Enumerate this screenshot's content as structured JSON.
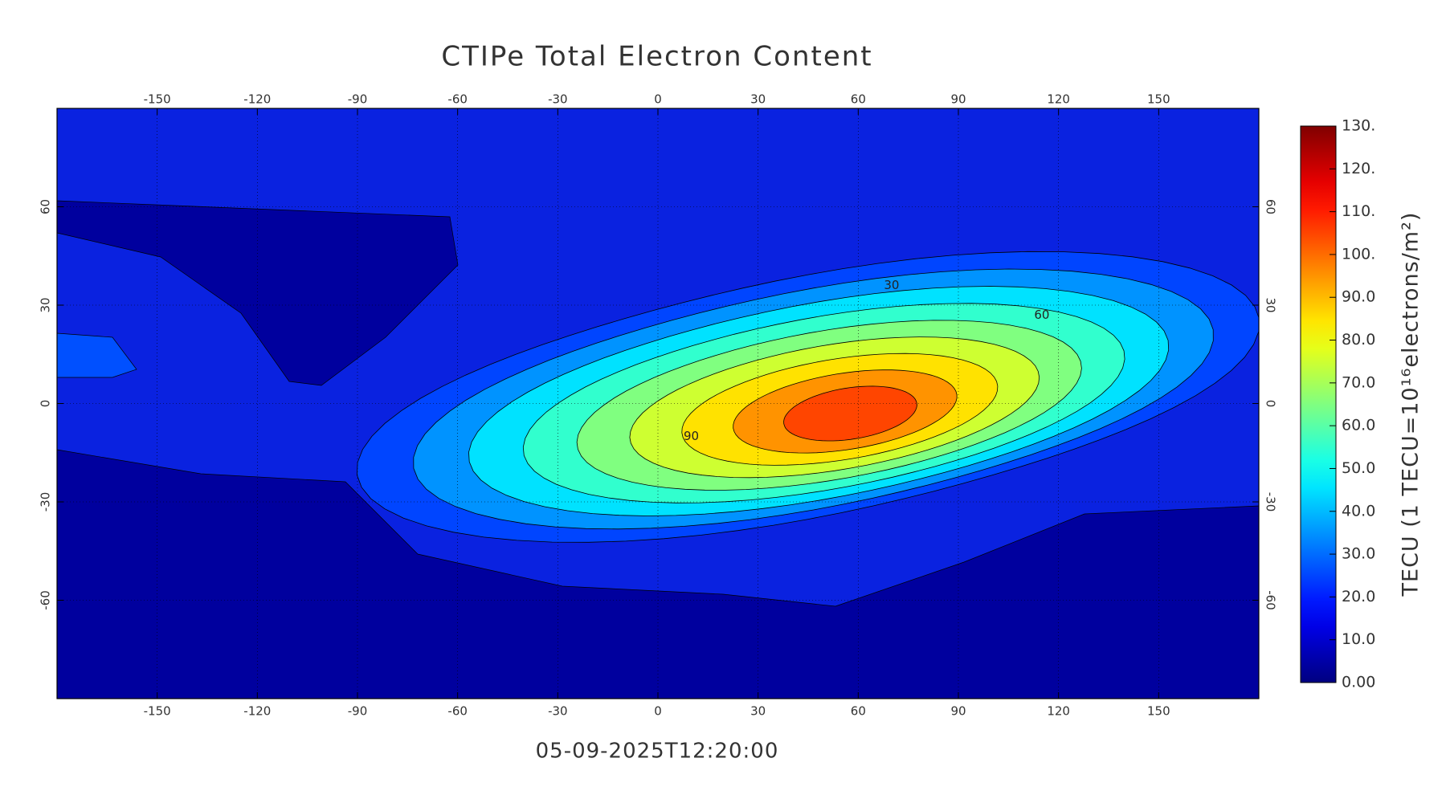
{
  "chart_data": {
    "type": "contour_map",
    "title": "CTIPe Total Electron Content",
    "subtitle": "05-09-2025T12:20:00",
    "colorbar_label": "TECU (1 TECU=10¹⁶electrons/m²)",
    "xlim": [
      -180,
      180
    ],
    "ylim": [
      -90,
      90
    ],
    "xticks": [
      -150,
      -120,
      -90,
      -60,
      -30,
      0,
      30,
      60,
      90,
      120,
      150
    ],
    "yticks": [
      -60,
      -30,
      0,
      30,
      60
    ],
    "clim": [
      0,
      130
    ],
    "cticks": [
      {
        "value": 0,
        "label": "0.00"
      },
      {
        "value": 10,
        "label": "10.0"
      },
      {
        "value": 20,
        "label": "20.0"
      },
      {
        "value": 30,
        "label": "30.0"
      },
      {
        "value": 40,
        "label": "40.0"
      },
      {
        "value": 50,
        "label": "50.0"
      },
      {
        "value": 60,
        "label": "60.0"
      },
      {
        "value": 70,
        "label": "70.0"
      },
      {
        "value": 80,
        "label": "80.0"
      },
      {
        "value": 90,
        "label": "90.0"
      },
      {
        "value": 100,
        "label": "100."
      },
      {
        "value": 110,
        "label": "110."
      },
      {
        "value": 120,
        "label": "120."
      },
      {
        "value": 130,
        "label": "130."
      }
    ],
    "contour_levels": [
      20,
      30,
      40,
      50,
      60,
      70,
      80,
      90,
      100
    ],
    "contour_labels": [
      30,
      60,
      90
    ],
    "colormap": "jet",
    "grid": true
  }
}
